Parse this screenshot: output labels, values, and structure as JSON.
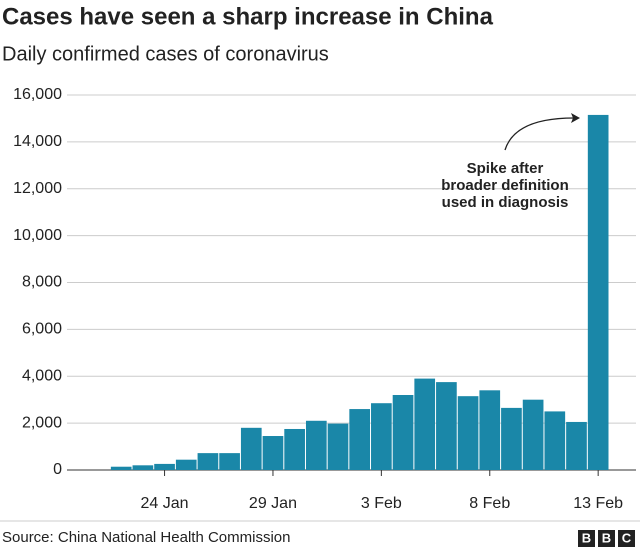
{
  "chart_data": {
    "type": "bar",
    "title": "Cases have seen a sharp increase in China",
    "subtitle": "Daily confirmed cases of coronavirus",
    "categories": [
      null,
      null,
      null,
      null,
      "24 Jan",
      null,
      null,
      null,
      null,
      "29 Jan",
      null,
      null,
      null,
      null,
      "3 Feb",
      null,
      null,
      null,
      null,
      "8 Feb",
      null,
      null,
      null,
      null,
      "13 Feb"
    ],
    "values": [
      0,
      0,
      140,
      200,
      260,
      440,
      720,
      720,
      1800,
      1450,
      1750,
      2100,
      1980,
      2600,
      2850,
      3200,
      3900,
      3750,
      3150,
      3400,
      2650,
      3000,
      2500,
      2050,
      15150
    ],
    "color": "#1a87a8",
    "ylim": [
      0,
      16000
    ],
    "yticks": [
      0,
      {
        "value": 2000,
        "label": "2,000"
      },
      {
        "value": 4000,
        "label": "4,000"
      },
      {
        "value": 6000,
        "label": "6,000"
      },
      {
        "value": 8000,
        "label": "8,000"
      },
      {
        "value": 10000,
        "label": "10,000"
      },
      {
        "value": 12000,
        "label": "12,000"
      },
      {
        "value": 14000,
        "label": "14,000"
      },
      {
        "value": 16000,
        "label": "16,000"
      }
    ],
    "grid": true,
    "annotation": [
      "Spike after",
      "broader definition",
      "used in diagnosis"
    ],
    "source": "Source: China National Health Commission",
    "logo": [
      "B",
      "B",
      "C"
    ]
  }
}
